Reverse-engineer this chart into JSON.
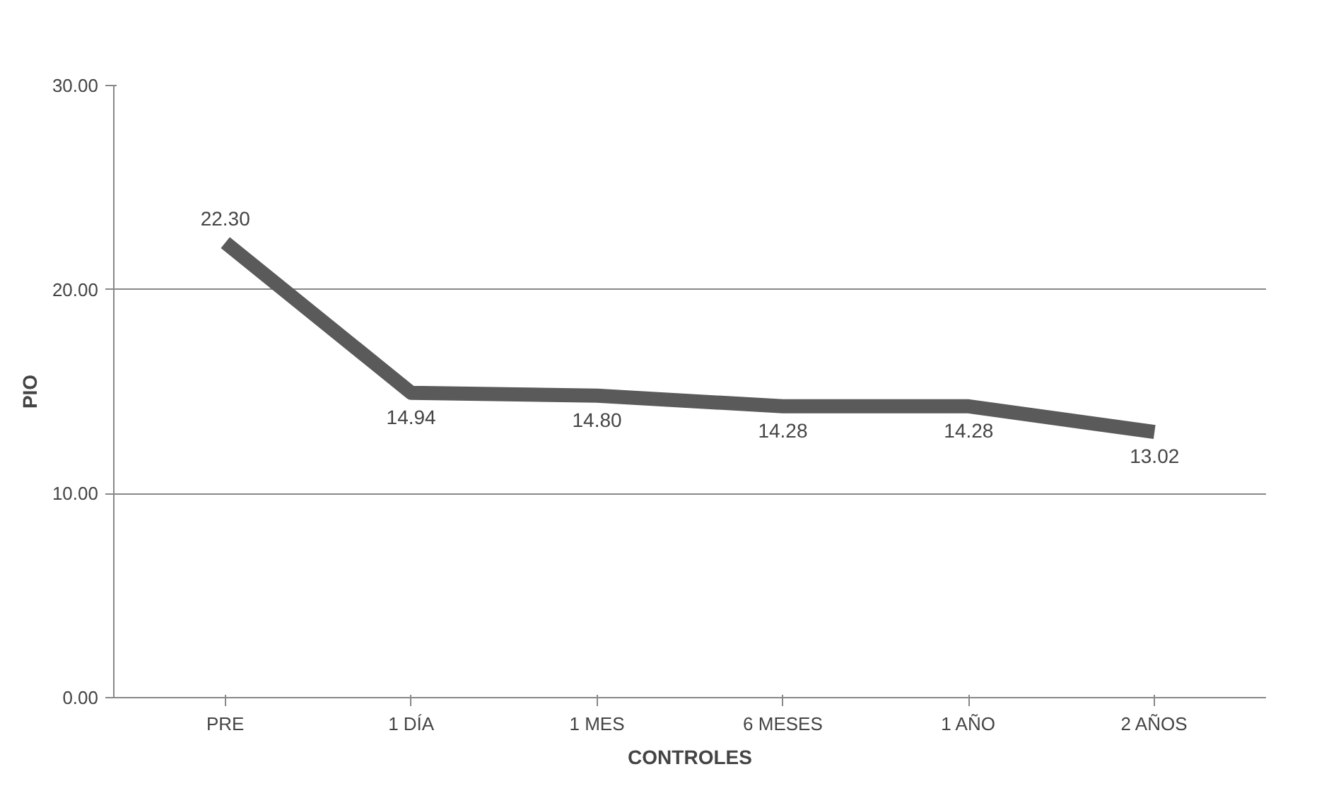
{
  "chart_data": {
    "type": "line",
    "xlabel": "CONTROLES",
    "ylabel": "PIO",
    "categories": [
      "PRE",
      "1 DÍA",
      "1 MES",
      "6 MESES",
      "1 AÑO",
      "2 AÑOS"
    ],
    "series": [
      {
        "color": "#5a5a5a",
        "values": [
          22.3,
          14.94,
          14.8,
          14.28,
          14.28,
          13.02
        ]
      }
    ],
    "value_labels": [
      "22.30",
      "14.94",
      "14.80",
      "14.28",
      "14.28",
      "13.02"
    ],
    "ylim": [
      0,
      30
    ],
    "yticks": [
      {
        "value": 0,
        "label": "0.00"
      },
      {
        "value": 10,
        "label": "10.00"
      },
      {
        "value": 20,
        "label": "20.00"
      },
      {
        "value": 30,
        "label": "30.00"
      }
    ],
    "grid": "y",
    "line_style": "solid",
    "marker": "none"
  }
}
